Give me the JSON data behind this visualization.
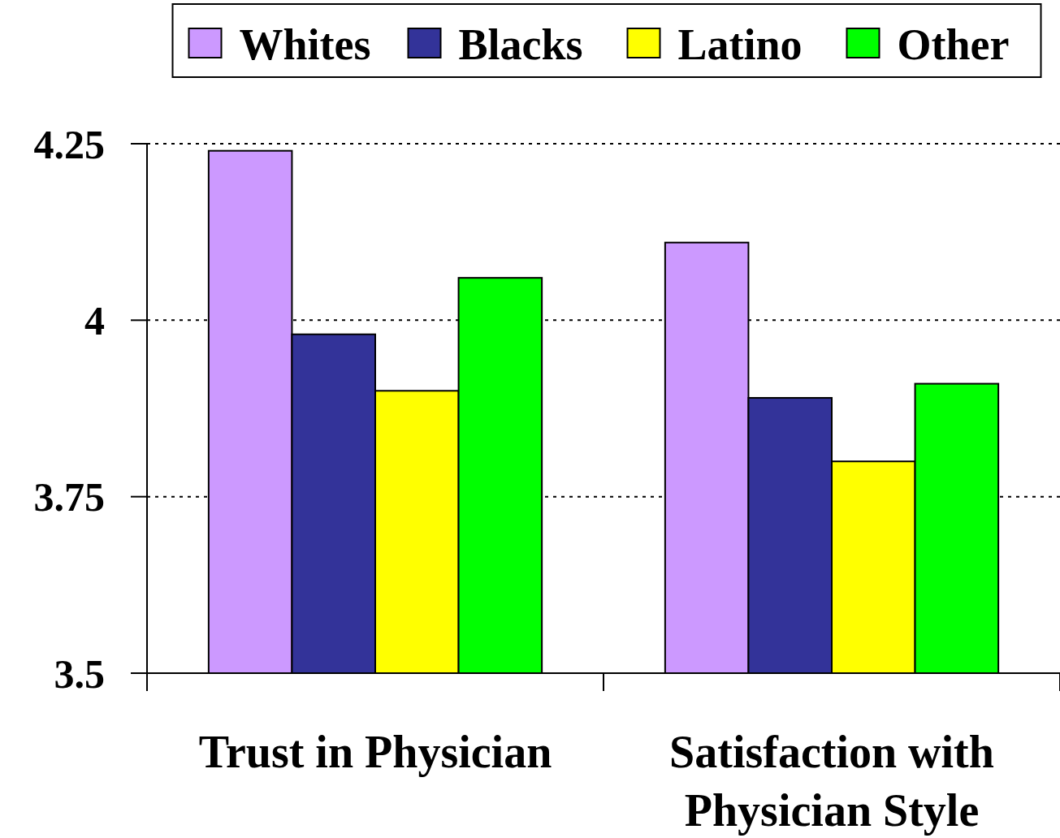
{
  "chart_data": {
    "type": "bar",
    "categories": [
      "Trust in Physician",
      "Satisfaction with Physician Style"
    ],
    "series": [
      {
        "name": "Whites",
        "color": "#cc99ff",
        "values": [
          4.24,
          4.11
        ]
      },
      {
        "name": "Blacks",
        "color": "#333399",
        "values": [
          3.98,
          3.89
        ]
      },
      {
        "name": "Latino",
        "color": "#ffff00",
        "values": [
          3.9,
          3.8
        ]
      },
      {
        "name": "Other",
        "color": "#00ff00",
        "values": [
          4.06,
          3.91
        ]
      }
    ],
    "ylim": [
      3.5,
      4.25
    ],
    "yticks": [
      3.5,
      3.75,
      4,
      4.25
    ],
    "grid": "y",
    "legend": "top"
  }
}
